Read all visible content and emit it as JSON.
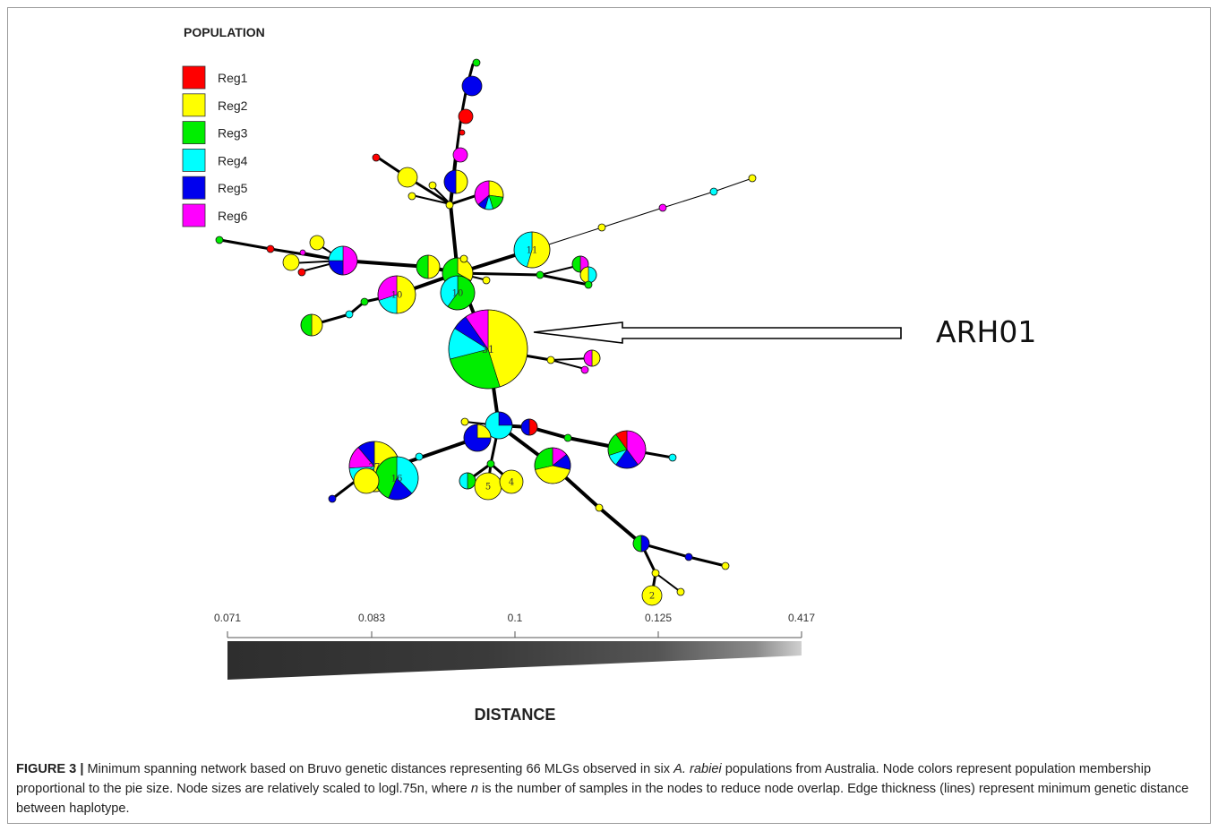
{
  "legend": {
    "title": "POPULATION",
    "items": [
      {
        "label": "Reg1",
        "color": "#ff0000"
      },
      {
        "label": "Reg2",
        "color": "#ffff00"
      },
      {
        "label": "Reg3",
        "color": "#00ee00"
      },
      {
        "label": "Reg4",
        "color": "#00ffff"
      },
      {
        "label": "Reg5",
        "color": "#0000ee"
      },
      {
        "label": "Reg6",
        "color": "#ff00ff"
      }
    ]
  },
  "annotation": {
    "label": "ARH01"
  },
  "nodes": [
    {
      "id": "hub",
      "label": "31",
      "slices": {
        "Reg2": 14,
        "Reg3": 8,
        "Reg4": 4,
        "Reg5": 2,
        "Reg6": 3
      }
    },
    {
      "id": "n11",
      "label": "11",
      "slices": {
        "Reg2": 6,
        "Reg4": 5
      }
    },
    {
      "id": "n10a",
      "label": "10",
      "slices": {
        "Reg2": 5,
        "Reg4": 2,
        "Reg6": 3
      }
    },
    {
      "id": "n10b",
      "label": "10",
      "slices": {
        "Reg3": 6,
        "Reg4": 4
      }
    },
    {
      "id": "n27",
      "label": "27",
      "slices": {
        "Reg2": 14,
        "Reg4": 6,
        "Reg6": 4,
        "Reg5": 3
      }
    },
    {
      "id": "n16",
      "label": "16",
      "slices": {
        "Reg4": 6,
        "Reg5": 3,
        "Reg3": 7
      }
    },
    {
      "id": "n5",
      "label": "5",
      "slices": {
        "Reg2": 5
      }
    },
    {
      "id": "n4",
      "label": "4",
      "slices": {
        "Reg2": 4
      }
    },
    {
      "id": "n2",
      "label": "2",
      "slices": {
        "Reg2": 2
      }
    }
  ],
  "distance_scale": {
    "title": "DISTANCE",
    "ticks": [
      "0.071",
      "0.083",
      "0.1",
      "0.125",
      "0.417"
    ]
  },
  "caption": {
    "label": "FIGURE 3 |",
    "part1": " Minimum spanning network based on Bruvo genetic distances representing 66 MLGs observed in six ",
    "species": "A. rabiei",
    "part2": " populations from Australia. Node colors represent population membership proportional to the pie size. Node sizes are relatively scaled to logl.75n, where ",
    "n_var": "n",
    "part3": " is the number of samples in the nodes to reduce node overlap. Edge thickness (lines) represent minimum genetic distance between haplotype."
  }
}
